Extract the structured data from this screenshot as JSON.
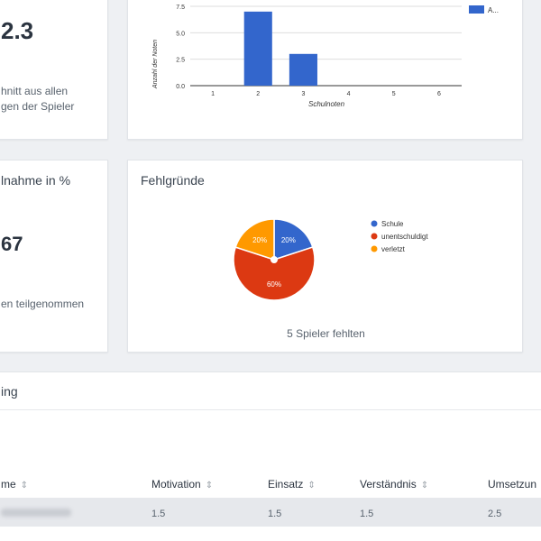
{
  "avg_card": {
    "value": "2.3",
    "desc_line1": "hnitt aus allen",
    "desc_line2": "gen der Spieler"
  },
  "grades_chart": {
    "ylabel": "Anzahl der Noten",
    "xlabel": "Schulnoten",
    "legend_label": "A...",
    "color": "#3366cc"
  },
  "attendance_card": {
    "title": "lnahme in %",
    "value": "67",
    "desc": "en teilgenommen"
  },
  "reasons_card": {
    "title": "Fehlgründe",
    "footer": "5 Spieler fehlten"
  },
  "table": {
    "title": "ing",
    "headers": [
      "me",
      "Motivation",
      "Einsatz",
      "Verständnis",
      "Umsetzun"
    ],
    "rows": [
      {
        "name": "(blurred)",
        "cells": [
          "1.5",
          "1.5",
          "1.5",
          "2.5"
        ]
      }
    ],
    "sort_icon": "sort-icon"
  },
  "chart_data": [
    {
      "type": "bar",
      "title": "",
      "xlabel": "Schulnoten",
      "ylabel": "Anzahl der Noten",
      "categories": [
        "1",
        "2",
        "3",
        "4",
        "5",
        "6"
      ],
      "values": [
        0,
        7,
        3,
        0,
        0,
        0
      ],
      "ylim": [
        0,
        7.5
      ],
      "yticks": [
        "0.0",
        "2.5",
        "5.0",
        "7.5"
      ],
      "legend": "top-right",
      "series_color": "#3366cc",
      "grid": true
    },
    {
      "type": "pie",
      "title": "Fehlgründe",
      "slices": [
        {
          "label": "Schule",
          "value": 20,
          "display": "20%",
          "color": "#3366cc"
        },
        {
          "label": "unentschuldigt",
          "value": 60,
          "display": "60%",
          "color": "#dc3912"
        },
        {
          "label": "verletzt",
          "value": 20,
          "display": "20%",
          "color": "#ff9900"
        }
      ],
      "legend": "right"
    }
  ]
}
